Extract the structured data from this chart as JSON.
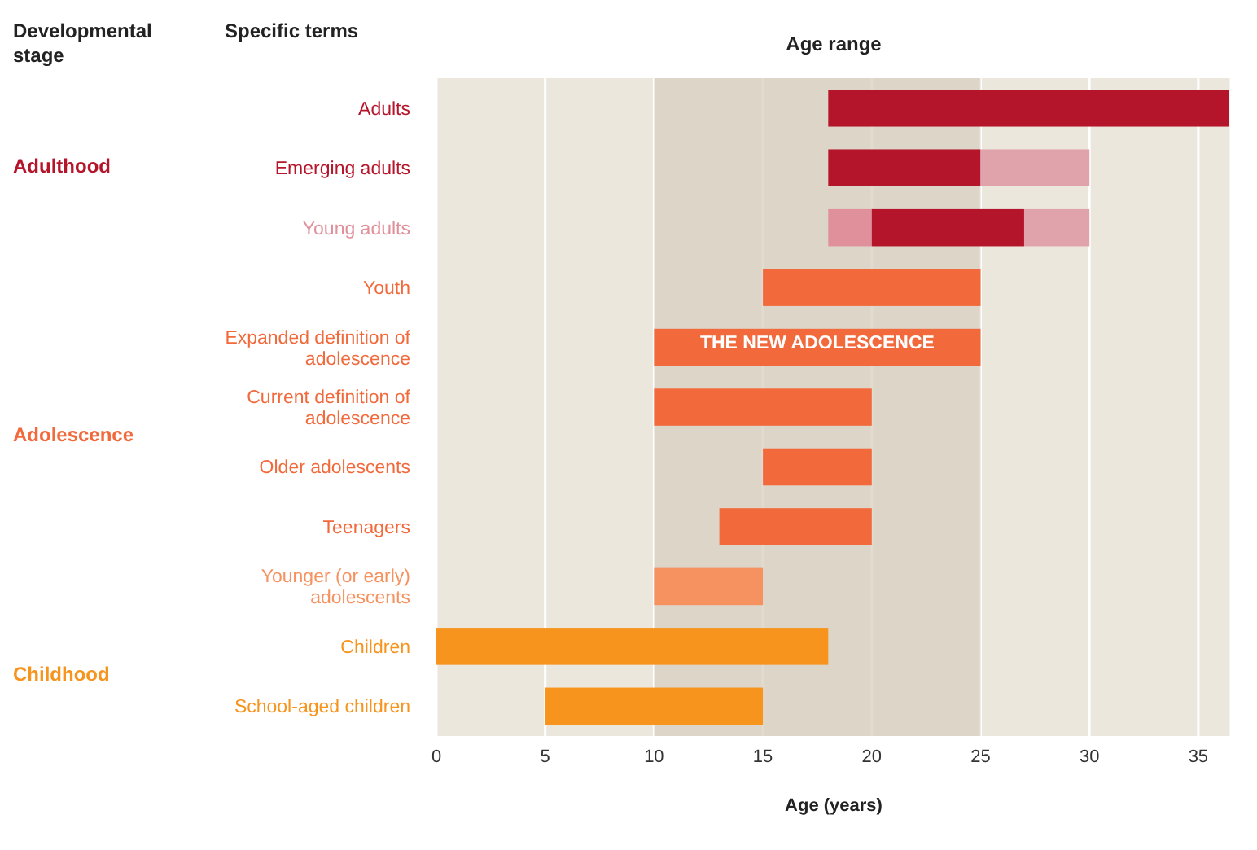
{
  "chart_data": {
    "type": "bar",
    "orientation": "horizontal",
    "title": "Age range",
    "xlabel": "Age (years)",
    "categories": [
      "Adults",
      "Emerging adults",
      "Young adults",
      "Youth",
      "Expanded definition of adolescence",
      "Current definition of adolescence",
      "Older adolescents",
      "Teenagers",
      "Younger (or early) adolescents",
      "Children",
      "School-aged children"
    ],
    "series": [
      {
        "colors": [
          "#b5152b",
          "#b5152b",
          "#e0909a",
          "#f26a3c",
          "#f26a3c",
          "#f26a3c",
          "#f26a3c",
          "#f26a3c",
          "#f5925f",
          "#f7941d",
          "#f7941d"
        ],
        "base": [
          18,
          18,
          18,
          15,
          10,
          10,
          15,
          13,
          10,
          0,
          5
        ],
        "values": [
          18.4,
          7,
          2,
          10,
          15,
          10,
          5,
          7,
          5,
          18,
          10
        ]
      },
      {
        "colors": [
          "#b5152b",
          "#e0a3ab",
          "#b5152b",
          "#f26a3c",
          "#f26a3c",
          "#f26a3c",
          "#f26a3c",
          "#f26a3c",
          "#f26a3c",
          "#f7941d",
          "#f7941d"
        ],
        "base": [
          null,
          25,
          20,
          null,
          null,
          null,
          null,
          null,
          null,
          null,
          null
        ],
        "values": [
          null,
          5,
          7,
          null,
          null,
          null,
          null,
          null,
          null,
          null,
          null
        ]
      },
      {
        "colors": [
          "#b5152b",
          "#b5152b",
          "#e0a3ab",
          "#f26a3c",
          "#f26a3c",
          "#f26a3c",
          "#f26a3c",
          "#f26a3c",
          "#f26a3c",
          "#f7941d",
          "#f7941d"
        ],
        "base": [
          null,
          null,
          27,
          null,
          null,
          null,
          null,
          null,
          null,
          null,
          null
        ],
        "values": [
          null,
          null,
          3,
          null,
          null,
          null,
          null,
          null,
          null,
          null,
          null
        ]
      }
    ],
    "xlim": [
      0,
      36.5
    ],
    "xticks": [
      0,
      5,
      10,
      15,
      20,
      25,
      30,
      35
    ],
    "grid": "x",
    "bands": [
      {
        "axis": "x",
        "from": 10,
        "to": 25,
        "color": "#d8cfc0"
      }
    ],
    "annotations": [
      "Developmental stage",
      "Specific terms",
      "Adulthood",
      "Adolescence",
      "Childhood",
      "THE NEW ADOLESCENCE"
    ]
  }
}
